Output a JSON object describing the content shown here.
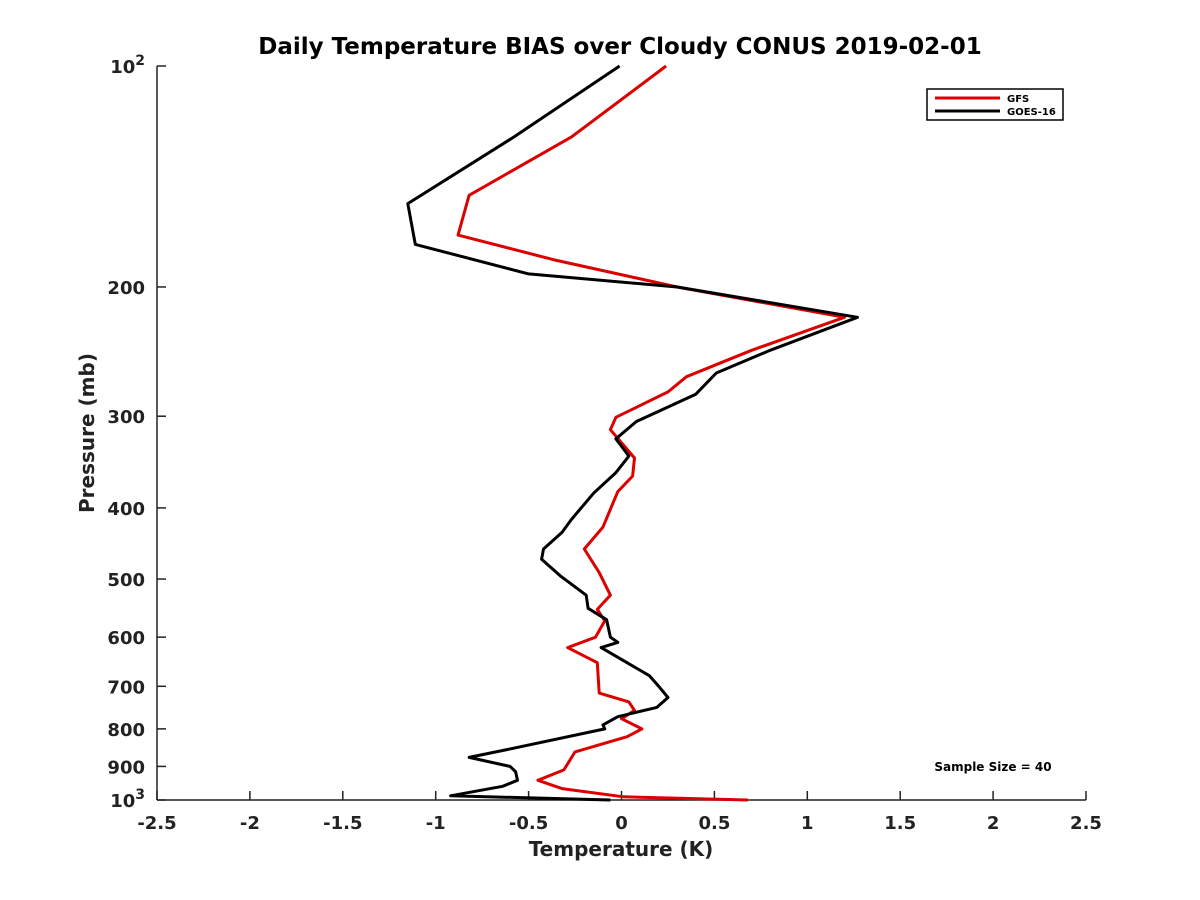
{
  "chart_data": {
    "type": "line",
    "title": "Daily Temperature BIAS over Cloudy CONUS 2019-02-01",
    "xlabel": "Temperature (K)",
    "ylabel": "Pressure (mb)",
    "xlim": [
      -2.5,
      2.5
    ],
    "ylim": [
      100,
      1000
    ],
    "yscale": "log",
    "yreversed": true,
    "xticks": [
      -2.5,
      -2,
      -1.5,
      -1,
      -0.5,
      0,
      0.5,
      1,
      1.5,
      2,
      2.5
    ],
    "xtick_labels": [
      "-2.5",
      "-2",
      "-1.5",
      "-1",
      "-0.5",
      "0",
      "0.5",
      "1",
      "1.5",
      "2",
      "2.5"
    ],
    "yticks": [
      100,
      200,
      300,
      400,
      500,
      600,
      700,
      800,
      900,
      1000
    ],
    "ytick_labels": [
      {
        "base": "10",
        "exp": "2"
      },
      {
        "base": "200",
        "exp": ""
      },
      {
        "base": "300",
        "exp": ""
      },
      {
        "base": "400",
        "exp": ""
      },
      {
        "base": "500",
        "exp": ""
      },
      {
        "base": "600",
        "exp": ""
      },
      {
        "base": "700",
        "exp": ""
      },
      {
        "base": "800",
        "exp": ""
      },
      {
        "base": "900",
        "exp": ""
      },
      {
        "base": "10",
        "exp": "3"
      }
    ],
    "legend_position": "top-right",
    "annotation": "Sample Size = 40",
    "series": [
      {
        "name": "GFS",
        "color": "#dd0000",
        "points": [
          [
            0.24,
            100
          ],
          [
            -0.27,
            125
          ],
          [
            -0.82,
            150
          ],
          [
            -0.88,
            170
          ],
          [
            -0.35,
            184
          ],
          [
            0.3,
            200
          ],
          [
            1.2,
            220
          ],
          [
            0.7,
            244
          ],
          [
            0.35,
            265
          ],
          [
            0.25,
            278
          ],
          [
            -0.03,
            301
          ],
          [
            -0.06,
            313
          ],
          [
            0.07,
            342
          ],
          [
            0.06,
            362
          ],
          [
            -0.02,
            380
          ],
          [
            -0.1,
            425
          ],
          [
            -0.2,
            455
          ],
          [
            -0.12,
            490
          ],
          [
            -0.06,
            526
          ],
          [
            -0.13,
            550
          ],
          [
            -0.09,
            570
          ],
          [
            -0.14,
            600
          ],
          [
            -0.29,
            620
          ],
          [
            -0.13,
            650
          ],
          [
            -0.12,
            715
          ],
          [
            0.04,
            735
          ],
          [
            0.07,
            755
          ],
          [
            0,
            775
          ],
          [
            0.11,
            800
          ],
          [
            0.03,
            820
          ],
          [
            -0.25,
            860
          ],
          [
            -0.31,
            910
          ],
          [
            -0.45,
            940
          ],
          [
            -0.32,
            965
          ],
          [
            0.01,
            990
          ],
          [
            0.68,
            1000
          ]
        ]
      },
      {
        "name": "GOES-16",
        "color": "#000000",
        "points": [
          [
            -0.01,
            100
          ],
          [
            -0.58,
            125
          ],
          [
            -1.15,
            154
          ],
          [
            -1.11,
            175
          ],
          [
            -0.5,
            192
          ],
          [
            0.3,
            200
          ],
          [
            1.27,
            220
          ],
          [
            0.8,
            244
          ],
          [
            0.51,
            262
          ],
          [
            0.4,
            280
          ],
          [
            0.08,
            305
          ],
          [
            -0.03,
            322
          ],
          [
            0.04,
            340
          ],
          [
            -0.03,
            358
          ],
          [
            -0.15,
            382
          ],
          [
            -0.27,
            415
          ],
          [
            -0.32,
            432
          ],
          [
            -0.42,
            455
          ],
          [
            -0.43,
            470
          ],
          [
            -0.33,
            495
          ],
          [
            -0.19,
            526
          ],
          [
            -0.18,
            548
          ],
          [
            -0.08,
            568
          ],
          [
            -0.06,
            600
          ],
          [
            -0.02,
            610
          ],
          [
            -0.11,
            620
          ],
          [
            0.15,
            677
          ],
          [
            0.2,
            700
          ],
          [
            0.25,
            725
          ],
          [
            0.19,
            748
          ],
          [
            -0.02,
            770
          ],
          [
            -0.1,
            790
          ],
          [
            -0.09,
            800
          ],
          [
            -0.58,
            850
          ],
          [
            -0.82,
            875
          ],
          [
            -0.6,
            900
          ],
          [
            -0.57,
            915
          ],
          [
            -0.56,
            940
          ],
          [
            -0.64,
            958
          ],
          [
            -0.92,
            987
          ],
          [
            -0.06,
            1000
          ]
        ]
      }
    ]
  }
}
